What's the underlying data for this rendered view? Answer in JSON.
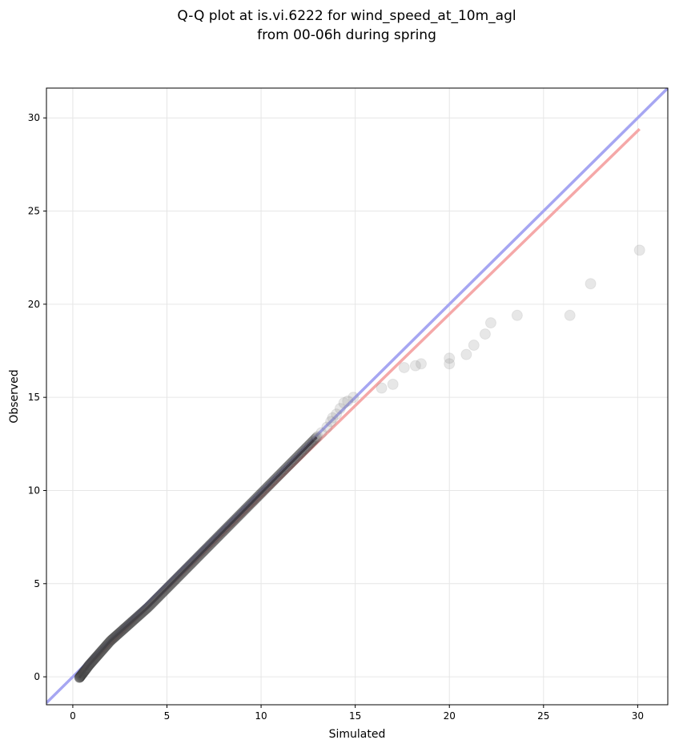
{
  "chart_data": {
    "type": "scatter",
    "title_lines": [
      "Q-Q plot at is.vi.6222 for wind_speed_at_10m_agl",
      "from 00-06h during spring"
    ],
    "xlabel": "Simulated",
    "ylabel": "Observed",
    "xlim": [
      -1.4,
      31.6
    ],
    "ylim": [
      -1.5,
      31.6
    ],
    "xticks": [
      0,
      5,
      10,
      15,
      20,
      25,
      30
    ],
    "yticks": [
      0,
      5,
      10,
      15,
      20,
      25,
      30
    ],
    "grid": true,
    "reference_lines": [
      {
        "color": "#a6a6f2",
        "points": [
          [
            -1.4,
            -1.4
          ],
          [
            31.6,
            31.6
          ]
        ]
      },
      {
        "color": "#f5a8a8",
        "points": [
          [
            0.3,
            0.1
          ],
          [
            30.1,
            29.4
          ]
        ]
      }
    ],
    "tail_points": [
      [
        13.0,
        12.9
      ],
      [
        13.2,
        13.1
      ],
      [
        13.5,
        13.4
      ],
      [
        13.7,
        13.7
      ],
      [
        13.8,
        13.9
      ],
      [
        14.0,
        14.1
      ],
      [
        14.2,
        14.4
      ],
      [
        14.4,
        14.7
      ],
      [
        14.6,
        14.8
      ],
      [
        14.9,
        15.0
      ],
      [
        16.4,
        15.5
      ],
      [
        17.0,
        15.7
      ],
      [
        17.6,
        16.6
      ],
      [
        18.2,
        16.7
      ],
      [
        18.5,
        16.8
      ],
      [
        20.0,
        16.8
      ],
      [
        20.0,
        17.1
      ],
      [
        20.9,
        17.3
      ],
      [
        21.3,
        17.8
      ],
      [
        21.9,
        18.4
      ],
      [
        22.2,
        19.0
      ],
      [
        23.6,
        19.4
      ],
      [
        26.4,
        19.4
      ],
      [
        27.5,
        21.1
      ],
      [
        30.1,
        22.9
      ]
    ]
  }
}
